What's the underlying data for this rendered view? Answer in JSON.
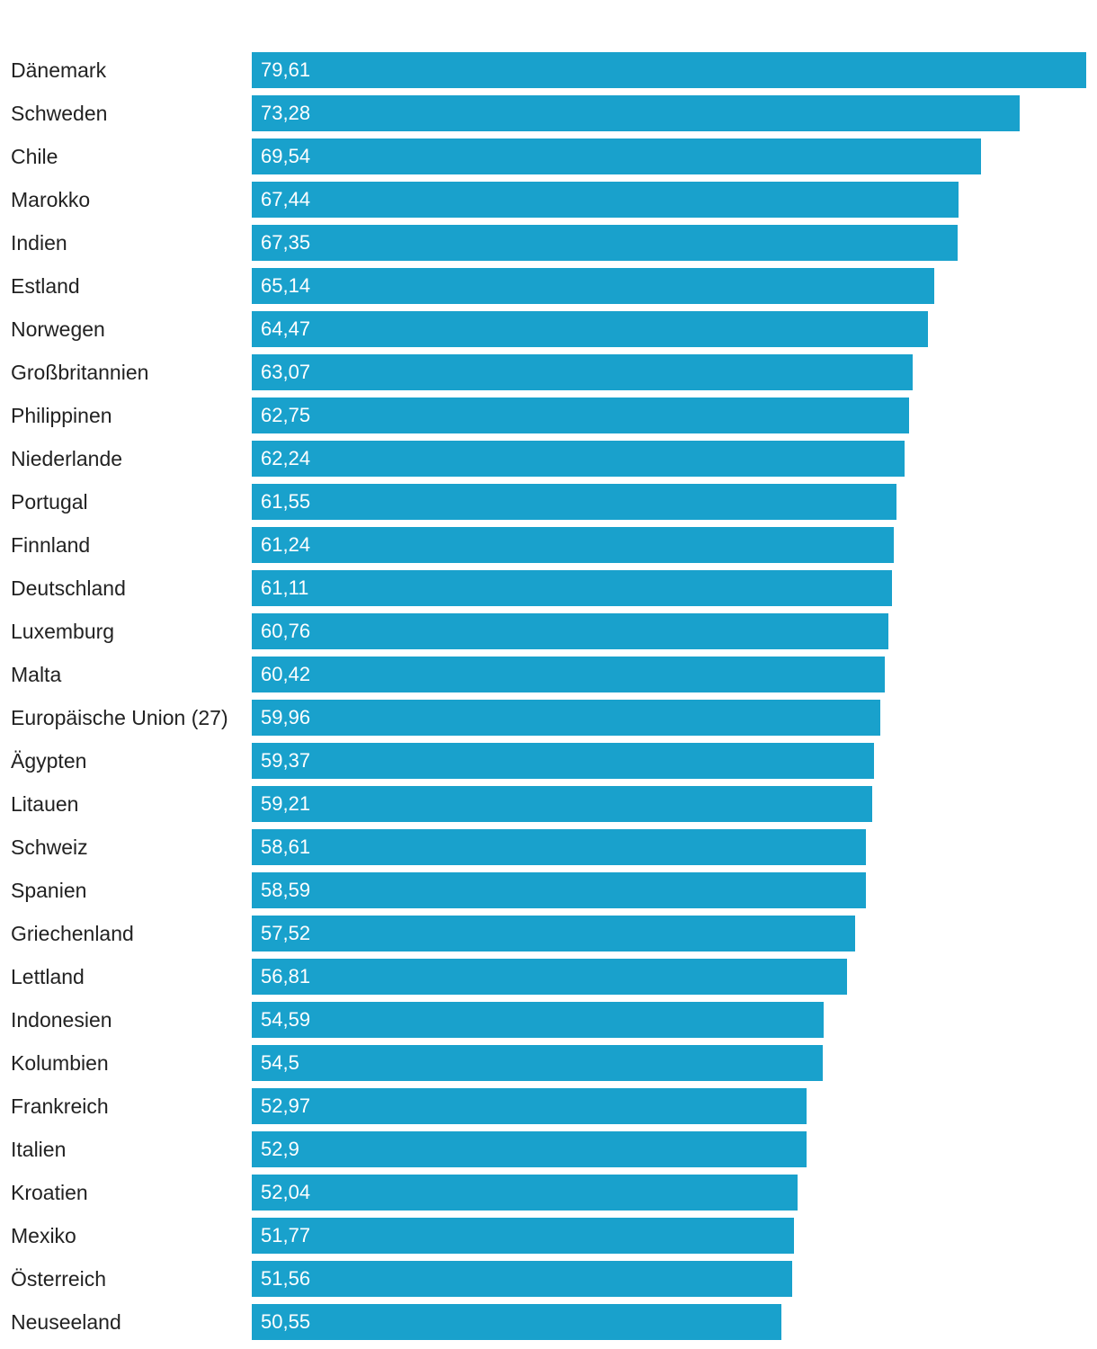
{
  "chart_data": {
    "type": "bar",
    "orientation": "horizontal",
    "title": "",
    "xlabel": "",
    "ylabel": "",
    "xlim": [
      0,
      79.61
    ],
    "grid": false,
    "legend": "none",
    "bar_color": "#19a1cc",
    "label_color": "#222222",
    "value_label_color": "#ffffff",
    "categories": [
      "Dänemark",
      "Schweden",
      "Chile",
      "Marokko",
      "Indien",
      "Estland",
      "Norwegen",
      "Großbritannien",
      "Philippinen",
      "Niederlande",
      "Portugal",
      "Finnland",
      "Deutschland",
      "Luxemburg",
      "Malta",
      "Europäische Union (27)",
      "Ägypten",
      "Litauen",
      "Schweiz",
      "Spanien",
      "Griechenland",
      "Lettland",
      "Indonesien",
      "Kolumbien",
      "Frankreich",
      "Italien",
      "Kroatien",
      "Mexiko",
      "Österreich",
      "Neuseeland"
    ],
    "values": [
      79.61,
      73.28,
      69.54,
      67.44,
      67.35,
      65.14,
      64.47,
      63.07,
      62.75,
      62.24,
      61.55,
      61.24,
      61.11,
      60.76,
      60.42,
      59.96,
      59.37,
      59.21,
      58.61,
      58.59,
      57.52,
      56.81,
      54.59,
      54.5,
      52.97,
      52.9,
      52.04,
      51.77,
      51.56,
      50.55
    ],
    "value_labels": [
      "79,61",
      "73,28",
      "69,54",
      "67,44",
      "67,35",
      "65,14",
      "64,47",
      "63,07",
      "62,75",
      "62,24",
      "61,55",
      "61,24",
      "61,11",
      "60,76",
      "60,42",
      "59,96",
      "59,37",
      "59,21",
      "58,61",
      "58,59",
      "57,52",
      "56,81",
      "54,59",
      "54,5",
      "52,97",
      "52,9",
      "52,04",
      "51,77",
      "51,56",
      "50,55"
    ]
  }
}
